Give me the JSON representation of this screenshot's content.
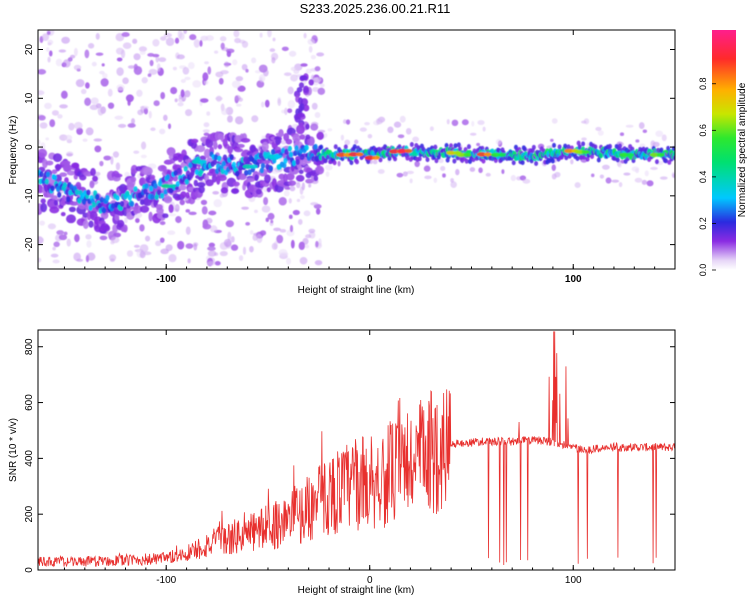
{
  "title": "S233.2025.236.00.21.R11",
  "chart_data": [
    {
      "type": "heatmap",
      "xlabel": "Height of straight line (km)",
      "ylabel": "Frequency (Hz)",
      "xlim": [
        -163,
        150
      ],
      "ylim": [
        -25,
        24
      ],
      "x_ticks": [
        -100,
        0,
        100
      ],
      "y_ticks": [
        20,
        10,
        0,
        -10,
        -20
      ],
      "grid": false,
      "colorbar": {
        "label": "Normalized spectral amplitude",
        "range": [
          0,
          1
        ],
        "ticks": [
          "0.0",
          "0.2",
          "0.4",
          "0.6",
          "0.8"
        ],
        "colormap": "rainbow (purple-blue-cyan-green-yellow-red-magenta)"
      },
      "ridge": [
        {
          "x": -160,
          "y": -7
        },
        {
          "x": -130,
          "y": -12
        },
        {
          "x": -100,
          "y": -8
        },
        {
          "x": -80,
          "y": -3
        },
        {
          "x": -60,
          "y": -4
        },
        {
          "x": -40,
          "y": -2
        },
        {
          "x": -20,
          "y": -1.5
        },
        {
          "x": 0,
          "y": -1.5
        },
        {
          "x": 15,
          "y": -0.8
        },
        {
          "x": 40,
          "y": -1.2
        },
        {
          "x": 60,
          "y": -1.5
        },
        {
          "x": 80,
          "y": -1.8
        },
        {
          "x": 100,
          "y": -0.8
        },
        {
          "x": 130,
          "y": -1.5
        },
        {
          "x": 150,
          "y": -1.5
        }
      ]
    },
    {
      "type": "line",
      "xlabel": "Height of straight line (km)",
      "ylabel": "SNR (10 * v/v)",
      "xlim": [
        -163,
        150
      ],
      "ylim": [
        0,
        860
      ],
      "x_ticks": [
        -100,
        0,
        100
      ],
      "y_ticks": [
        0,
        200,
        400,
        600,
        800
      ],
      "grid": false,
      "series": [
        {
          "color": "#e8302e",
          "envelope": [
            {
              "x": -163,
              "y": 30
            },
            {
              "x": -140,
              "y": 30
            },
            {
              "x": -120,
              "y": 35
            },
            {
              "x": -100,
              "y": 40
            },
            {
              "x": -90,
              "y": 60
            },
            {
              "x": -80,
              "y": 90
            },
            {
              "x": -60,
              "y": 130
            },
            {
              "x": -40,
              "y": 180
            },
            {
              "x": -30,
              "y": 220
            },
            {
              "x": -20,
              "y": 270
            },
            {
              "x": -10,
              "y": 300
            },
            {
              "x": 0,
              "y": 320
            },
            {
              "x": 10,
              "y": 340
            },
            {
              "x": 20,
              "y": 380
            },
            {
              "x": 30,
              "y": 420
            },
            {
              "x": 40,
              "y": 450
            },
            {
              "x": 55,
              "y": 460
            },
            {
              "x": 70,
              "y": 460
            },
            {
              "x": 80,
              "y": 465
            },
            {
              "x": 90,
              "y": 460
            },
            {
              "x": 105,
              "y": 430
            },
            {
              "x": 120,
              "y": 440
            },
            {
              "x": 150,
              "y": 440
            }
          ]
        }
      ]
    }
  ]
}
